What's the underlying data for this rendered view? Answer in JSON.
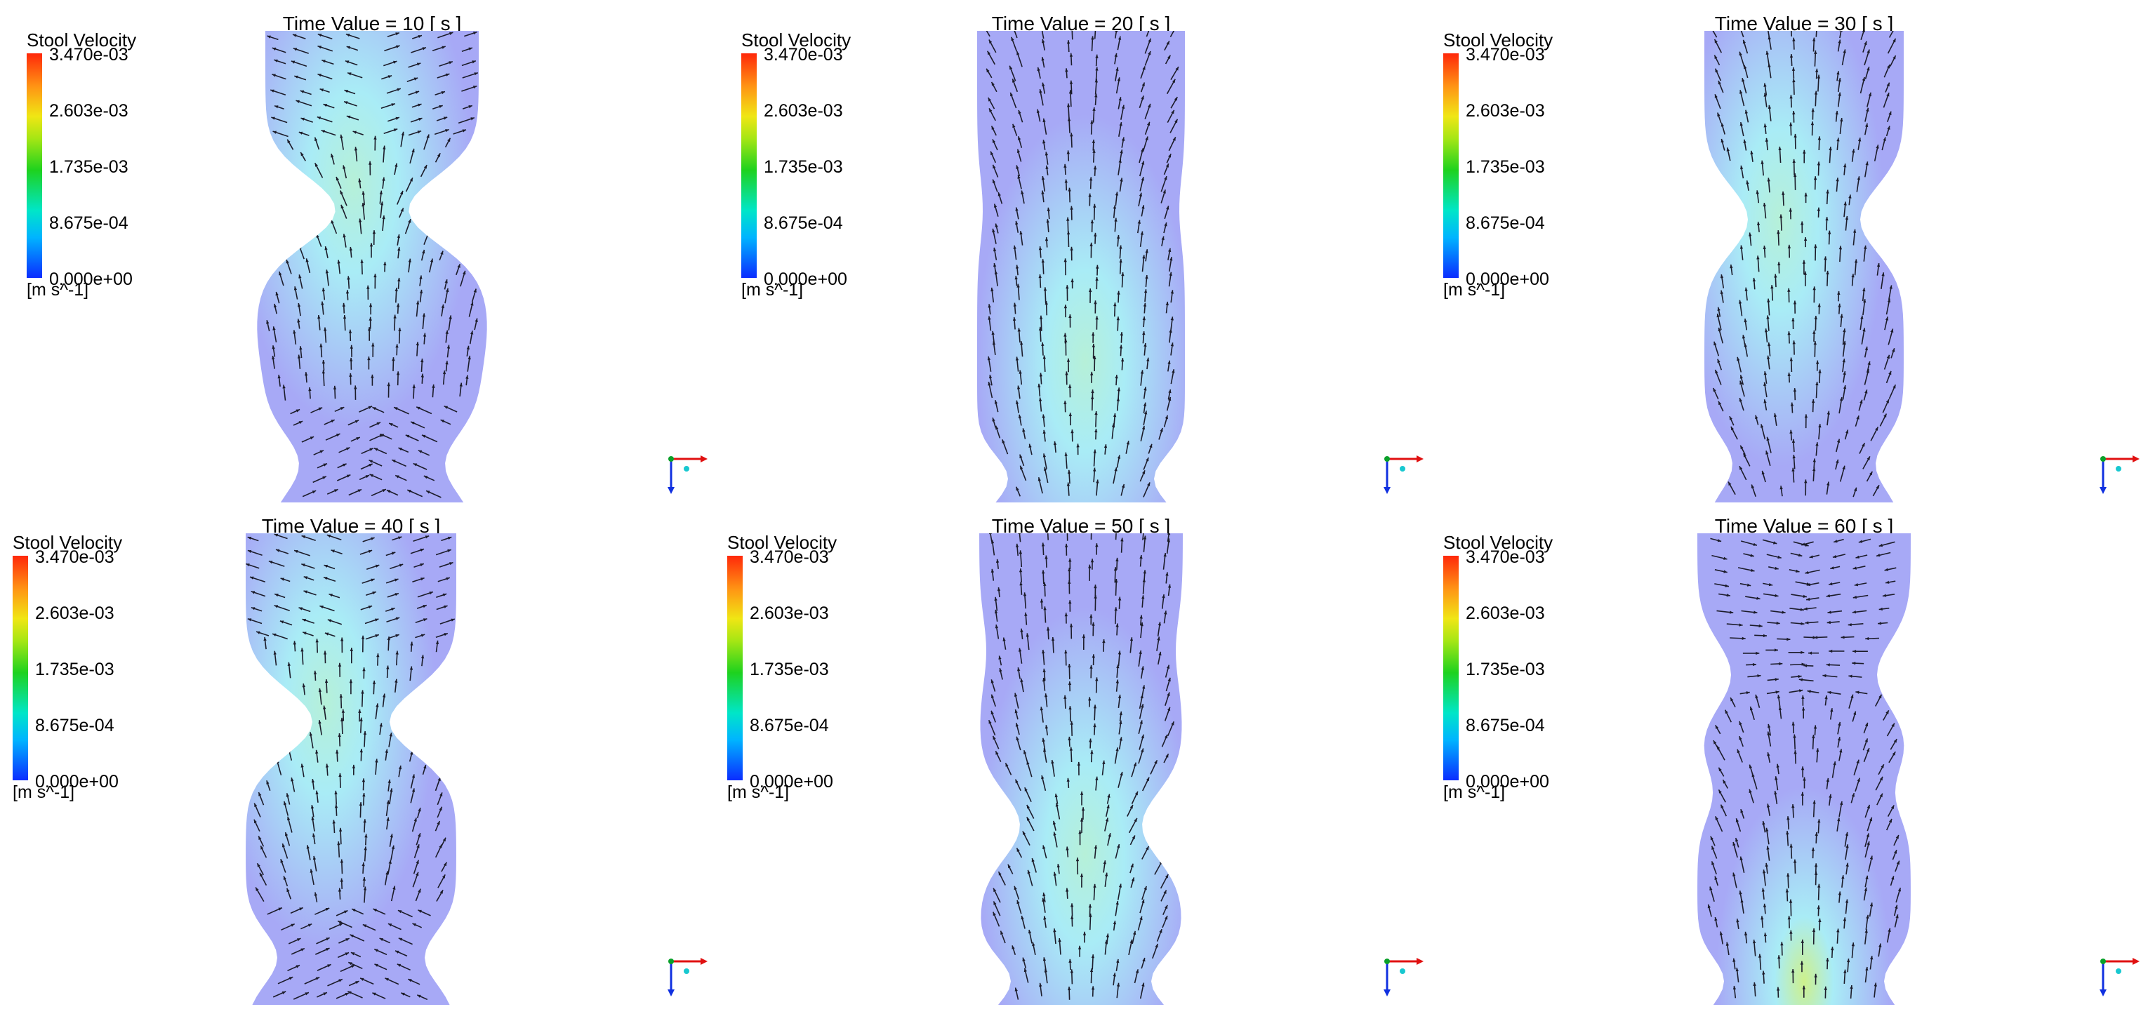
{
  "legend": {
    "title": "Stool Velocity",
    "ticks": [
      "3.470e-03",
      "2.603e-03",
      "1.735e-03",
      "8.675e-04",
      "0.000e+00"
    ],
    "unit": "[m s^-1]"
  },
  "colors": {
    "background": "#ffffff",
    "region_low": "#a7a9f6",
    "region_mid": "#a9ecf6",
    "region_high": "#cdf08c",
    "arrow": "#1c1c2a",
    "axis_x": "#e01010",
    "axis_y": "#1030e0",
    "axis_origin": "#0aa02a"
  },
  "panels": [
    {
      "title": "Time Value = 10 [ s ]",
      "time": 10
    },
    {
      "title": "Time Value = 20 [ s ]",
      "time": 20
    },
    {
      "title": "Time Value = 30 [ s ]",
      "time": 30
    },
    {
      "title": "Time Value = 40 [ s ]",
      "time": 40
    },
    {
      "title": "Time Value = 50 [ s ]",
      "time": 50
    },
    {
      "title": "Time Value = 60 [ s ]",
      "time": 60
    }
  ]
}
